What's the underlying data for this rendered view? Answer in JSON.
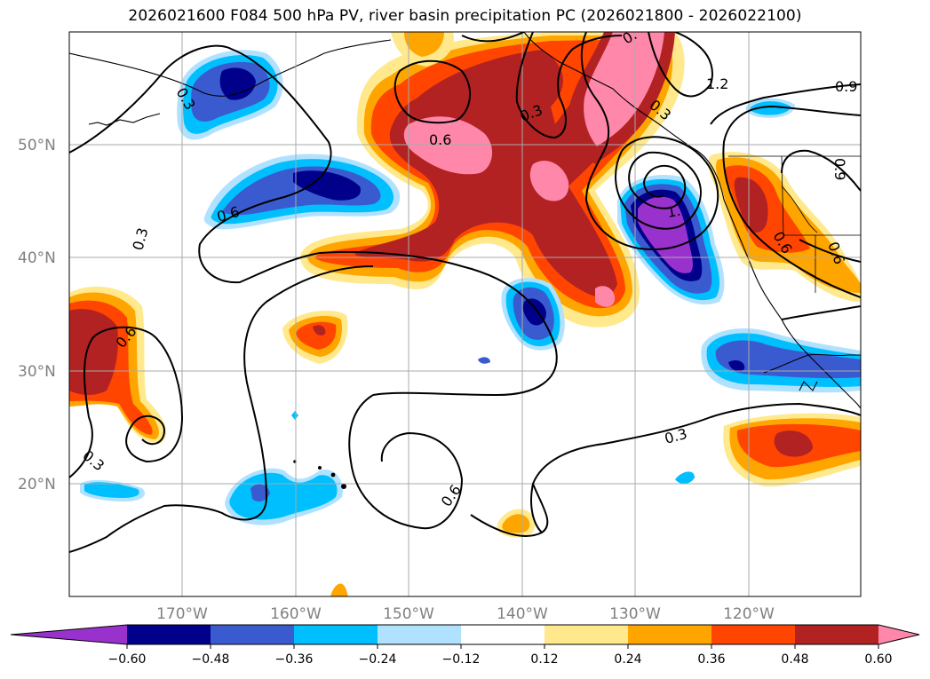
{
  "title": "2026021600 F084 500 hPa PV, river basin precipitation PC (2026021800 - 2026022100)",
  "lat_labels": [
    "50°N",
    "40°N",
    "30°N",
    "20°N"
  ],
  "lon_labels": [
    "170°W",
    "160°W",
    "150°W",
    "140°W",
    "130°W",
    "120°W"
  ],
  "contour_labels": [
    "0.3",
    "0.3",
    "0.3",
    "0.3",
    "0.3",
    "0.6",
    "0.6",
    "0.6",
    "0.6",
    "0.6",
    "0.6",
    "0.9",
    "0.9",
    "1.2",
    "1.",
    "0.",
    "0.3"
  ],
  "colorbar": {
    "ticks": [
      "−0.60",
      "−0.48",
      "−0.36",
      "−0.24",
      "−0.12",
      "0.12",
      "0.24",
      "0.36",
      "0.48",
      "0.60"
    ],
    "colors": [
      "#9932cc",
      "#00008b",
      "#3a5bd0",
      "#00bfff",
      "#b0e2ff",
      "#ffffff",
      "#ffe98c",
      "#ffa500",
      "#ff4500",
      "#b22222",
      "#ff88aa"
    ]
  }
}
